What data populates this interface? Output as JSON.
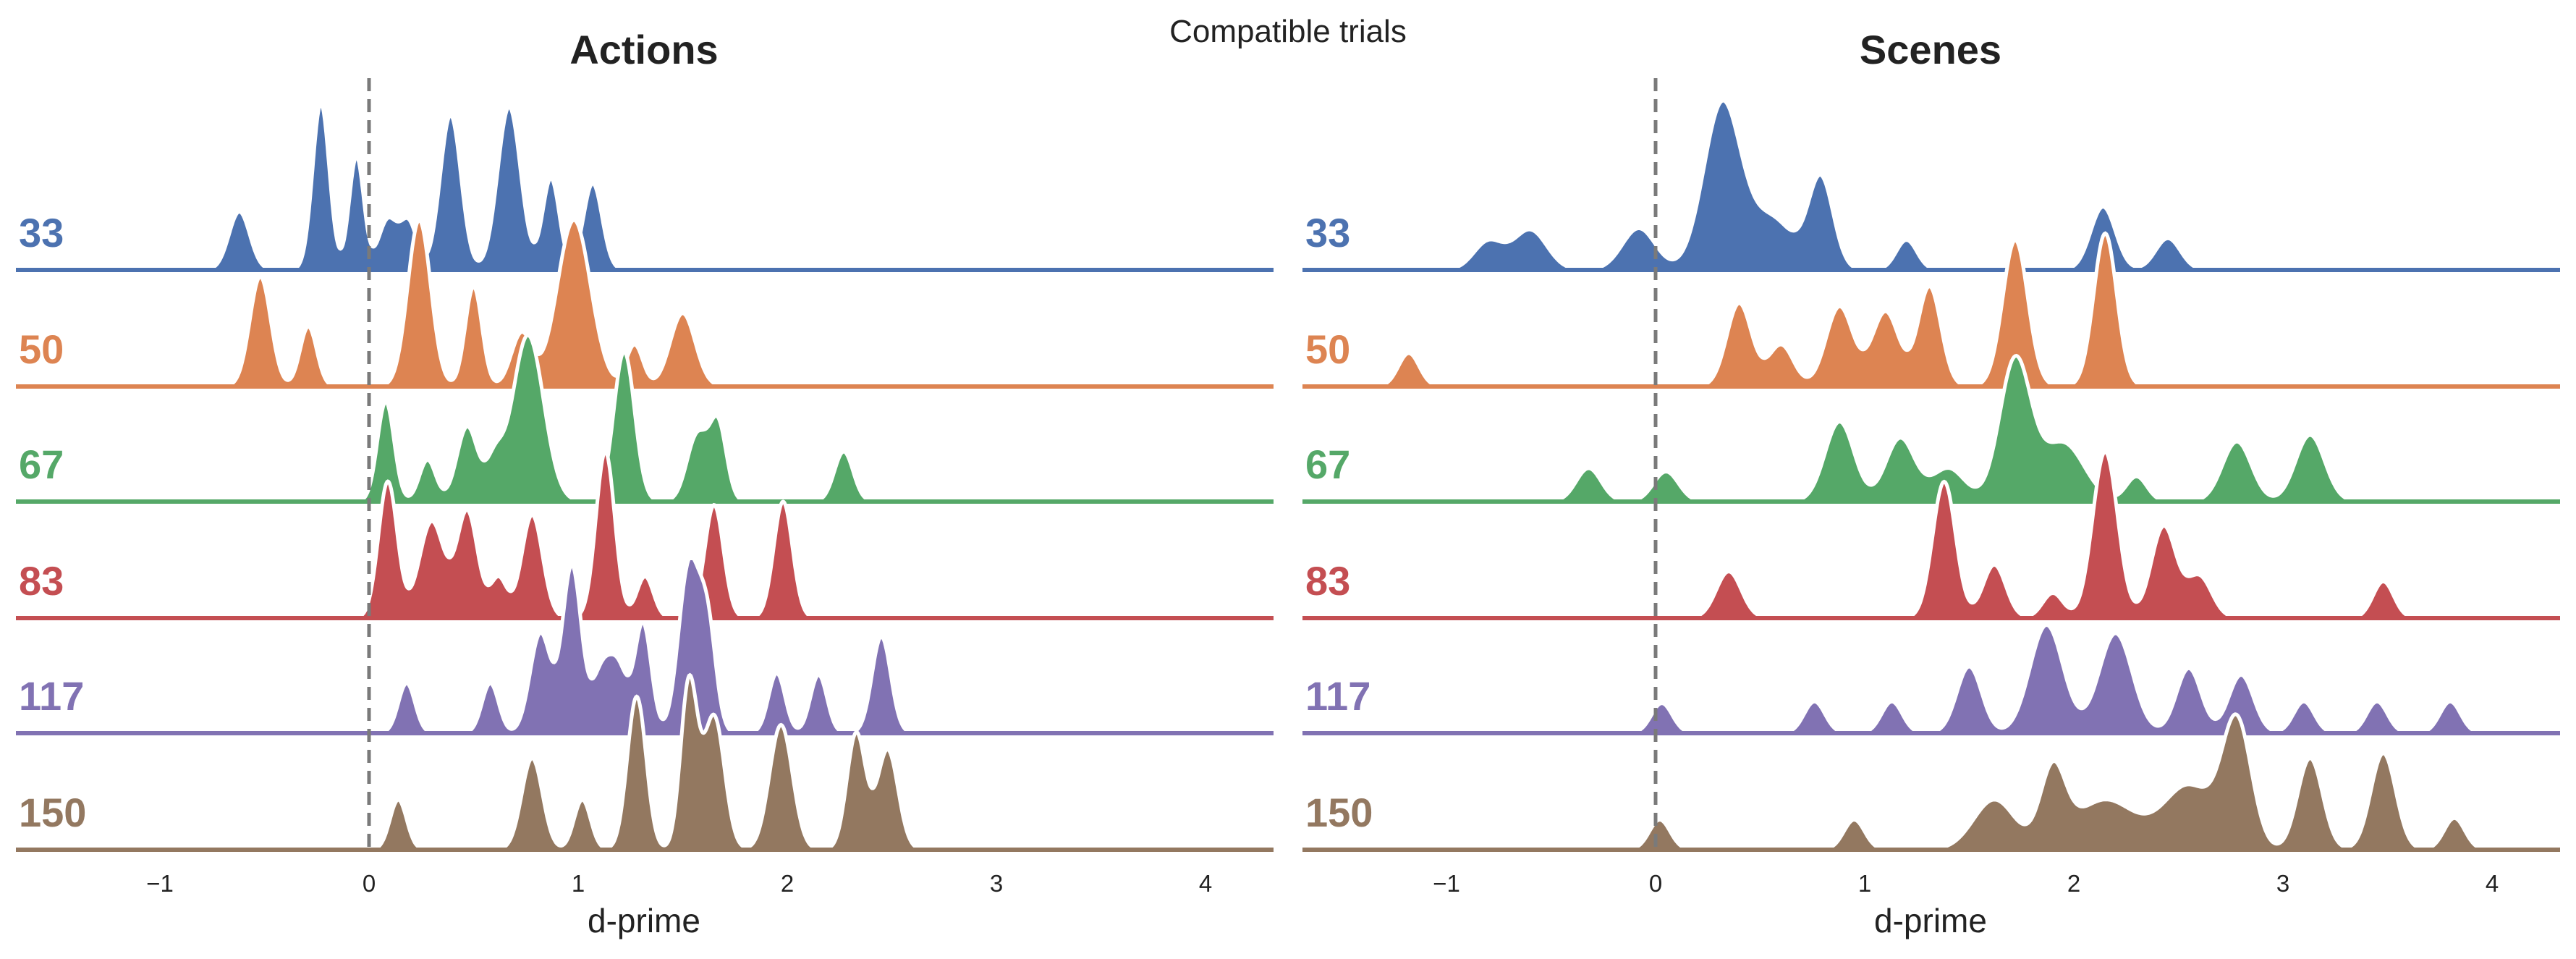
{
  "suptitle": "Compatible trials",
  "chart_data": [
    {
      "type": "area",
      "subtype": "ridgeline-density",
      "title": "Actions",
      "xlabel": "d-prime",
      "xlim": [
        -1.7,
        4.3
      ],
      "xticks": [
        -1,
        0,
        1,
        2,
        3,
        4
      ],
      "xtick_labels": [
        "−1",
        "0",
        "1",
        "2",
        "3",
        "4"
      ],
      "reference_line_x": 0,
      "rows": [
        {
          "label": "33",
          "color": "#4c72b0",
          "peaks": [
            [
              -0.62,
              0.35,
              0.05
            ],
            [
              -0.23,
              1.0,
              0.04
            ],
            [
              -0.06,
              0.68,
              0.035
            ],
            [
              0.09,
              0.3,
              0.045
            ],
            [
              0.19,
              0.28,
              0.04
            ],
            [
              0.39,
              0.93,
              0.05
            ],
            [
              0.67,
              0.98,
              0.055
            ],
            [
              0.87,
              0.55,
              0.04
            ],
            [
              1.07,
              0.52,
              0.045
            ]
          ]
        },
        {
          "label": "50",
          "color": "#dd8452",
          "peaks": [
            [
              -0.52,
              0.66,
              0.05
            ],
            [
              -0.29,
              0.36,
              0.04
            ],
            [
              0.24,
              1.0,
              0.055
            ],
            [
              0.5,
              0.6,
              0.04
            ],
            [
              0.73,
              0.32,
              0.05
            ],
            [
              0.98,
              1.0,
              0.08
            ],
            [
              1.27,
              0.25,
              0.04
            ],
            [
              1.5,
              0.44,
              0.06
            ]
          ]
        },
        {
          "label": "67",
          "color": "#55a868",
          "peaks": [
            [
              0.08,
              0.6,
              0.04
            ],
            [
              0.28,
              0.25,
              0.04
            ],
            [
              0.47,
              0.45,
              0.05
            ],
            [
              0.6,
              0.22,
              0.04
            ],
            [
              0.76,
              1.0,
              0.075
            ],
            [
              1.22,
              0.9,
              0.05
            ],
            [
              1.57,
              0.4,
              0.05
            ],
            [
              1.67,
              0.45,
              0.04
            ],
            [
              2.27,
              0.3,
              0.045
            ]
          ]
        },
        {
          "label": "83",
          "color": "#c44e52",
          "peaks": [
            [
              0.09,
              0.82,
              0.045
            ],
            [
              0.3,
              0.58,
              0.06
            ],
            [
              0.47,
              0.64,
              0.05
            ],
            [
              0.62,
              0.24,
              0.04
            ],
            [
              0.78,
              0.62,
              0.05
            ],
            [
              1.13,
              1.0,
              0.045
            ],
            [
              1.32,
              0.25,
              0.04
            ],
            [
              1.65,
              0.68,
              0.045
            ],
            [
              1.98,
              0.7,
              0.045
            ]
          ]
        },
        {
          "label": "117",
          "color": "#8172b3",
          "peaks": [
            [
              0.18,
              0.3,
              0.04
            ],
            [
              0.58,
              0.3,
              0.04
            ],
            [
              0.82,
              0.6,
              0.05
            ],
            [
              0.97,
              1.0,
              0.045
            ],
            [
              1.12,
              0.4,
              0.05
            ],
            [
              1.2,
              0.3,
              0.04
            ],
            [
              1.31,
              0.66,
              0.04
            ],
            [
              1.53,
              1.0,
              0.05
            ],
            [
              1.62,
              0.6,
              0.04
            ],
            [
              1.95,
              0.36,
              0.04
            ],
            [
              2.15,
              0.35,
              0.04
            ],
            [
              2.45,
              0.58,
              0.045
            ]
          ]
        },
        {
          "label": "150",
          "color": "#937860",
          "peaks": [
            [
              0.14,
              0.3,
              0.04
            ],
            [
              0.78,
              0.55,
              0.05
            ],
            [
              1.02,
              0.3,
              0.04
            ],
            [
              1.28,
              0.92,
              0.045
            ],
            [
              1.53,
              1.0,
              0.04
            ],
            [
              1.65,
              0.8,
              0.05
            ],
            [
              1.97,
              0.75,
              0.055
            ],
            [
              2.33,
              0.7,
              0.045
            ],
            [
              2.48,
              0.6,
              0.05
            ]
          ]
        }
      ]
    },
    {
      "type": "area",
      "subtype": "ridgeline-density",
      "title": "Scenes",
      "xlabel": "d-prime",
      "xlim": [
        -1.7,
        4.3
      ],
      "xticks": [
        -1,
        0,
        1,
        2,
        3,
        4
      ],
      "xtick_labels": [
        "−1",
        "0",
        "1",
        "2",
        "3",
        "4"
      ],
      "reference_line_x": 0,
      "rows": [
        {
          "label": "33",
          "color": "#4c72b0",
          "peaks": [
            [
              -0.8,
              0.17,
              0.07
            ],
            [
              -0.6,
              0.24,
              0.08
            ],
            [
              -0.08,
              0.25,
              0.08
            ],
            [
              0.32,
              1.0,
              0.09
            ],
            [
              0.56,
              0.3,
              0.1
            ],
            [
              0.79,
              0.55,
              0.06
            ],
            [
              1.2,
              0.18,
              0.05
            ],
            [
              2.14,
              0.38,
              0.06
            ],
            [
              2.45,
              0.19,
              0.06
            ]
          ]
        },
        {
          "label": "50",
          "color": "#dd8452",
          "peaks": [
            [
              -1.18,
              0.2,
              0.05
            ],
            [
              0.4,
              0.5,
              0.06
            ],
            [
              0.6,
              0.25,
              0.06
            ],
            [
              0.88,
              0.48,
              0.065
            ],
            [
              1.1,
              0.45,
              0.065
            ],
            [
              1.31,
              0.6,
              0.055
            ],
            [
              1.72,
              0.88,
              0.06
            ],
            [
              2.15,
              0.92,
              0.055
            ]
          ]
        },
        {
          "label": "67",
          "color": "#55a868",
          "peaks": [
            [
              -0.32,
              0.2,
              0.06
            ],
            [
              0.05,
              0.18,
              0.06
            ],
            [
              0.88,
              0.48,
              0.07
            ],
            [
              1.17,
              0.38,
              0.07
            ],
            [
              1.4,
              0.2,
              0.08
            ],
            [
              1.72,
              0.85,
              0.075
            ],
            [
              1.95,
              0.35,
              0.1
            ],
            [
              2.3,
              0.15,
              0.05
            ],
            [
              2.78,
              0.36,
              0.07
            ],
            [
              3.13,
              0.4,
              0.07
            ]
          ]
        },
        {
          "label": "83",
          "color": "#c44e52",
          "peaks": [
            [
              0.35,
              0.28,
              0.06
            ],
            [
              1.38,
              0.82,
              0.055
            ],
            [
              1.62,
              0.32,
              0.055
            ],
            [
              1.9,
              0.15,
              0.05
            ],
            [
              2.15,
              1.0,
              0.06
            ],
            [
              2.43,
              0.55,
              0.06
            ],
            [
              2.6,
              0.25,
              0.06
            ],
            [
              3.48,
              0.22,
              0.05
            ]
          ]
        },
        {
          "label": "117",
          "color": "#8172b3",
          "peaks": [
            [
              0.03,
              0.18,
              0.05
            ],
            [
              0.76,
              0.19,
              0.05
            ],
            [
              1.13,
              0.19,
              0.05
            ],
            [
              1.5,
              0.4,
              0.06
            ],
            [
              1.87,
              0.65,
              0.08
            ],
            [
              2.2,
              0.6,
              0.08
            ],
            [
              2.55,
              0.39,
              0.06
            ],
            [
              2.8,
              0.35,
              0.06
            ],
            [
              3.1,
              0.19,
              0.05
            ],
            [
              3.45,
              0.19,
              0.05
            ],
            [
              3.8,
              0.19,
              0.05
            ]
          ]
        },
        {
          "label": "150",
          "color": "#937860",
          "peaks": [
            [
              0.02,
              0.18,
              0.05
            ],
            [
              0.95,
              0.18,
              0.05
            ],
            [
              1.62,
              0.3,
              0.1
            ],
            [
              1.9,
              0.45,
              0.06
            ],
            [
              2.15,
              0.3,
              0.15
            ],
            [
              2.55,
              0.38,
              0.12
            ],
            [
              2.78,
              0.75,
              0.07
            ],
            [
              3.13,
              0.55,
              0.06
            ],
            [
              3.48,
              0.58,
              0.06
            ],
            [
              3.82,
              0.19,
              0.05
            ]
          ]
        }
      ]
    }
  ]
}
